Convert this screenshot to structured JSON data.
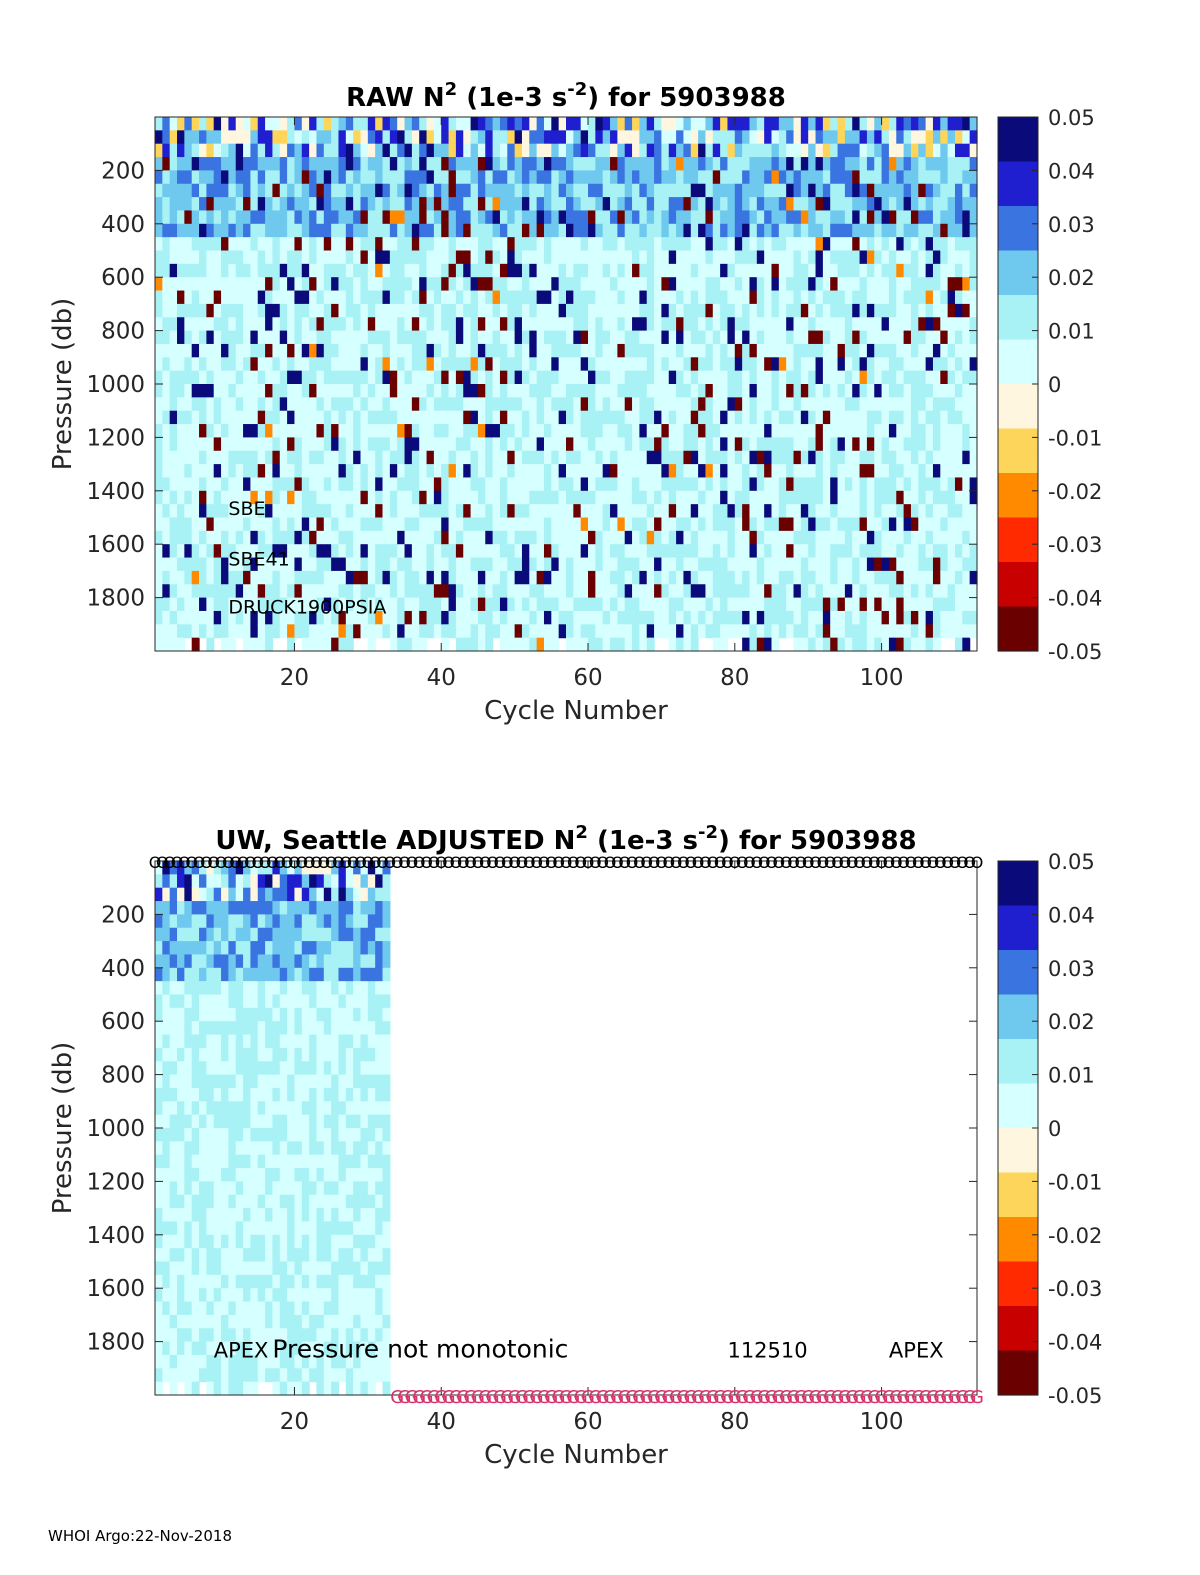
{
  "footer": "WHOI Argo:22-Nov-2018",
  "colormap_colors": [
    "#6b0000",
    "#c80000",
    "#ff2a00",
    "#ff8a00",
    "#fcd55a",
    "#fff6df",
    "#d6ffff",
    "#a8f2f5",
    "#6fc9ee",
    "#3a74e0",
    "#1f1fcf",
    "#0a0a7a"
  ],
  "chart_data": [
    {
      "type": "heatmap",
      "title_main": "RAW N",
      "title_sup1": "2",
      "title_mid": " (1e-3 s",
      "title_sup2": "-2",
      "title_end": ") for 5903988",
      "xlabel": "Cycle Number",
      "ylabel": "Pressure (db)",
      "xlim": [
        1,
        113
      ],
      "ylim": [
        0,
        2000
      ],
      "y_reversed": true,
      "xticks": [
        20,
        40,
        60,
        80,
        100
      ],
      "yticks": [
        200,
        400,
        600,
        800,
        1000,
        1200,
        1400,
        1600,
        1800
      ],
      "colorbar_range": [
        -0.05,
        0.05
      ],
      "colorbar_ticks": [
        0.05,
        0.04,
        0.03,
        0.02,
        0.01,
        0,
        -0.01,
        -0.02,
        -0.03,
        -0.04,
        -0.05
      ],
      "colorbar_tick_labels": [
        "0.05",
        "0.04",
        "0.03",
        "0.02",
        "0.01",
        "0",
        "-0.01",
        "-0.02",
        "-0.03",
        "-0.04",
        "-0.05"
      ],
      "data_cycles": [
        1,
        113
      ],
      "annotations": [
        {
          "text": "SBE",
          "x": 11,
          "y": 1490
        },
        {
          "text": "SBE41",
          "x": 11,
          "y": 1680
        },
        {
          "text": "DRUCK1900PSIA",
          "x": 11,
          "y": 1860
        }
      ]
    },
    {
      "type": "heatmap",
      "title_main": "UW, Seattle  ADJUSTED N",
      "title_sup1": "2",
      "title_mid": " (1e-3 s",
      "title_sup2": "-2",
      "title_end": ") for 5903988",
      "xlabel": "Cycle Number",
      "ylabel": "Pressure (db)",
      "xlim": [
        1,
        113
      ],
      "ylim": [
        0,
        2000
      ],
      "y_reversed": true,
      "xticks": [
        20,
        40,
        60,
        80,
        100
      ],
      "yticks": [
        200,
        400,
        600,
        800,
        1000,
        1200,
        1400,
        1600,
        1800
      ],
      "colorbar_range": [
        -0.05,
        0.05
      ],
      "colorbar_ticks": [
        0.05,
        0.04,
        0.03,
        0.02,
        0.01,
        0,
        -0.01,
        -0.02,
        -0.03,
        -0.04,
        -0.05
      ],
      "colorbar_tick_labels": [
        "0.05",
        "0.04",
        "0.03",
        "0.02",
        "0.01",
        "0",
        "-0.01",
        "-0.02",
        "-0.03",
        "-0.04",
        "-0.05"
      ],
      "data_cycles": [
        1,
        33
      ],
      "top_marker": "O",
      "bottom_marker": "G",
      "marker_cycles": [
        34,
        113
      ],
      "annotations": [
        {
          "text": "APEX",
          "x": 9,
          "y": 1860
        },
        {
          "text": "Pressure not monotonic",
          "x": 17,
          "y": 1860
        },
        {
          "text": "112510",
          "x": 79,
          "y": 1860
        },
        {
          "text": "APEX",
          "x": 101,
          "y": 1860
        }
      ]
    }
  ]
}
